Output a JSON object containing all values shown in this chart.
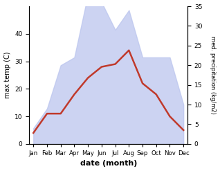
{
  "months": [
    "Jan",
    "Feb",
    "Mar",
    "Apr",
    "May",
    "Jun",
    "Jul",
    "Aug",
    "Sep",
    "Oct",
    "Nov",
    "Dec"
  ],
  "temperature": [
    4,
    11,
    11,
    18,
    24,
    28,
    29,
    34,
    22,
    18,
    10,
    5
  ],
  "precipitation": [
    4,
    9,
    20,
    22,
    38,
    36,
    29,
    34,
    22,
    22,
    22,
    10
  ],
  "temp_color": "#c0392b",
  "precip_fill_color": "#bbc5ee",
  "xlabel": "date (month)",
  "ylabel_left": "max temp (C)",
  "ylabel_right": "med. precipitation (kg/m2)",
  "ylim_left": [
    0,
    50
  ],
  "ylim_right": [
    0,
    35
  ],
  "yticks_left": [
    0,
    10,
    20,
    30,
    40
  ],
  "yticks_right": [
    0,
    5,
    10,
    15,
    20,
    25,
    30,
    35
  ],
  "temp_linewidth": 1.8
}
